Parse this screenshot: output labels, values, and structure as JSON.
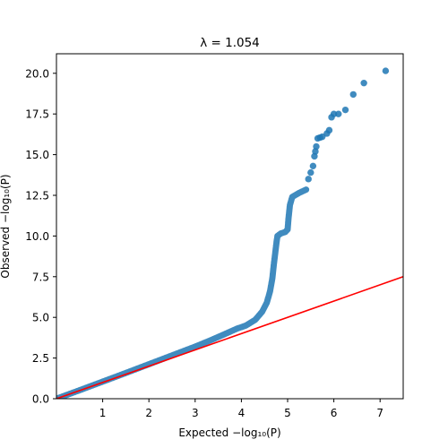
{
  "chart_data": {
    "type": "scatter",
    "title": "λ = 1.054",
    "xlabel": "Expected −log₁₀(P)",
    "ylabel": "Observed −log₁₀(P)",
    "xlim": [
      0,
      7.5
    ],
    "ylim": [
      0,
      21.2
    ],
    "x_ticks": [
      "1",
      "2",
      "3",
      "4",
      "5",
      "6",
      "7"
    ],
    "y_ticks": [
      "0.0",
      "2.5",
      "5.0",
      "7.5",
      "10.0",
      "12.5",
      "15.0",
      "17.5",
      "20.0"
    ],
    "x_tick_values": [
      1,
      2,
      3,
      4,
      5,
      6,
      7
    ],
    "y_tick_values": [
      0,
      2.5,
      5,
      7.5,
      10,
      12.5,
      15,
      17.5,
      20
    ],
    "grid": false,
    "point_color": "#1f77b4",
    "line_color": "#ff0000",
    "reference_line": {
      "slope": 1.0,
      "intercept": 0,
      "from": [
        0,
        0
      ],
      "to": [
        7.5,
        7.5
      ]
    },
    "dense_curve": [
      [
        0.0,
        0.0
      ],
      [
        0.5,
        0.52
      ],
      [
        1.0,
        1.05
      ],
      [
        1.5,
        1.58
      ],
      [
        2.0,
        2.12
      ],
      [
        2.5,
        2.66
      ],
      [
        3.0,
        3.2
      ],
      [
        3.3,
        3.55
      ],
      [
        3.6,
        3.92
      ],
      [
        3.9,
        4.3
      ],
      [
        4.1,
        4.5
      ],
      [
        4.3,
        4.85
      ],
      [
        4.45,
        5.35
      ],
      [
        4.55,
        5.9
      ],
      [
        4.62,
        6.6
      ],
      [
        4.67,
        7.4
      ],
      [
        4.7,
        8.2
      ],
      [
        4.73,
        8.9
      ],
      [
        4.76,
        9.6
      ],
      [
        4.78,
        10.0
      ],
      [
        4.85,
        10.15
      ],
      [
        4.95,
        10.25
      ],
      [
        5.0,
        10.4
      ],
      [
        5.02,
        11.1
      ],
      [
        5.05,
        11.9
      ],
      [
        5.1,
        12.4
      ],
      [
        5.25,
        12.65
      ],
      [
        5.4,
        12.85
      ]
    ],
    "points": [
      [
        5.45,
        13.5
      ],
      [
        5.5,
        13.9
      ],
      [
        5.55,
        14.3
      ],
      [
        5.58,
        14.9
      ],
      [
        5.6,
        15.2
      ],
      [
        5.62,
        15.5
      ],
      [
        5.65,
        16.0
      ],
      [
        5.7,
        16.05
      ],
      [
        5.75,
        16.1
      ],
      [
        5.85,
        16.3
      ],
      [
        5.9,
        16.5
      ],
      [
        5.95,
        17.3
      ],
      [
        6.0,
        17.5
      ],
      [
        6.1,
        17.5
      ],
      [
        6.25,
        17.75
      ],
      [
        6.42,
        18.7
      ],
      [
        6.65,
        19.4
      ],
      [
        7.12,
        20.15
      ]
    ]
  }
}
